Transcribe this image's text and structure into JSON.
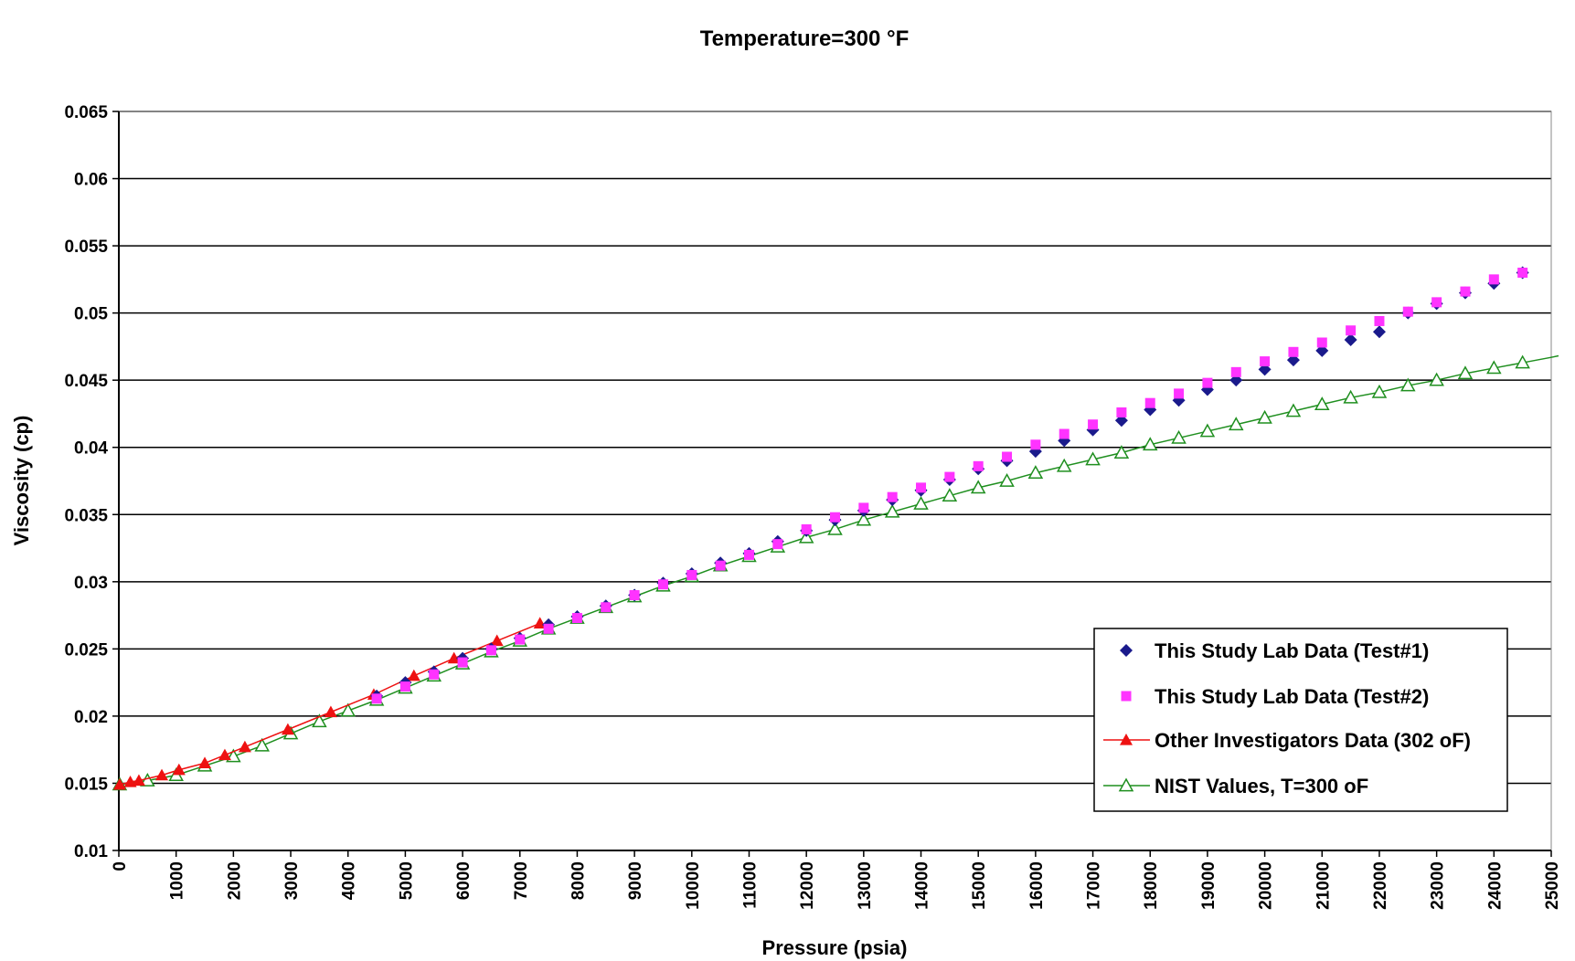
{
  "chart_data": {
    "type": "scatter",
    "title": "Temperature=300 °F",
    "xlabel": "Pressure (psia)",
    "ylabel": "Viscosity (cp)",
    "xlim": [
      0,
      25000
    ],
    "ylim": [
      0.01,
      0.065
    ],
    "xticks": [
      "0",
      "1000",
      "2000",
      "3000",
      "4000",
      "5000",
      "6000",
      "7000",
      "8000",
      "9000",
      "10000",
      "11000",
      "12000",
      "13000",
      "14000",
      "15000",
      "16000",
      "17000",
      "18000",
      "19000",
      "20000",
      "21000",
      "22000",
      "23000",
      "24000",
      "25000"
    ],
    "yticks": [
      "0.01",
      "0.015",
      "0.02",
      "0.025",
      "0.03",
      "0.035",
      "0.04",
      "0.045",
      "0.05",
      "0.055",
      "0.06",
      "0.065"
    ],
    "grid": "horizontal",
    "legend_position": "bottom-right",
    "series": [
      {
        "name": "This Study Lab Data (Test#1)",
        "marker": "diamond",
        "color": "#1a1a8c",
        "line": false,
        "x": [
          4500,
          5000,
          5500,
          6000,
          6500,
          7000,
          7500,
          8000,
          8500,
          9000,
          9500,
          10000,
          10500,
          11000,
          11500,
          12000,
          12500,
          13000,
          13500,
          14000,
          14500,
          15000,
          15500,
          16000,
          16500,
          17000,
          17500,
          18000,
          18500,
          19000,
          19500,
          20000,
          20500,
          21000,
          21500,
          22000,
          22500,
          23000,
          23500,
          24000,
          24500
        ],
        "y": [
          0.0215,
          0.0225,
          0.0233,
          0.0243,
          0.025,
          0.0258,
          0.0268,
          0.0274,
          0.0282,
          0.029,
          0.0299,
          0.0306,
          0.0314,
          0.0321,
          0.033,
          0.0338,
          0.0346,
          0.0353,
          0.0361,
          0.0368,
          0.0376,
          0.0384,
          0.039,
          0.0397,
          0.0405,
          0.0413,
          0.042,
          0.0428,
          0.0435,
          0.0443,
          0.045,
          0.0458,
          0.0465,
          0.0472,
          0.048,
          0.0486,
          0.05,
          0.0507,
          0.0515,
          0.0522,
          0.053
        ]
      },
      {
        "name": "This Study Lab Data (Test#2)",
        "marker": "square",
        "color": "#ff33ff",
        "line": false,
        "x": [
          4500,
          5000,
          5500,
          6000,
          6500,
          7000,
          7500,
          8000,
          8500,
          9000,
          9500,
          10000,
          10500,
          11000,
          11500,
          12000,
          12500,
          13000,
          13500,
          14000,
          14500,
          15000,
          15500,
          16000,
          16500,
          17000,
          17500,
          18000,
          18500,
          19000,
          19500,
          20000,
          20500,
          21000,
          21500,
          22000,
          22500,
          23000,
          23500,
          24000,
          24500
        ],
        "y": [
          0.0213,
          0.0222,
          0.0231,
          0.024,
          0.0249,
          0.0257,
          0.0265,
          0.0273,
          0.0281,
          0.029,
          0.0298,
          0.0305,
          0.0312,
          0.032,
          0.0328,
          0.0339,
          0.0348,
          0.0355,
          0.0363,
          0.037,
          0.0378,
          0.0386,
          0.0393,
          0.0402,
          0.041,
          0.0417,
          0.0426,
          0.0433,
          0.044,
          0.0448,
          0.0456,
          0.0464,
          0.0471,
          0.0478,
          0.0487,
          0.0494,
          0.0501,
          0.0508,
          0.0516,
          0.0525,
          0.053
        ]
      },
      {
        "name": "Other Investigators Data (302 oF)",
        "marker": "triangle-filled",
        "color": "#ee1111",
        "line": true,
        "x": [
          14.7,
          200,
          350,
          750,
          1050,
          1500,
          1850,
          2200,
          2950,
          3700,
          4450,
          5150,
          5850,
          6600,
          7350
        ],
        "y": [
          0.0149,
          0.0151,
          0.0152,
          0.0156,
          0.016,
          0.0165,
          0.0171,
          0.0177,
          0.019,
          0.0203,
          0.0216,
          0.023,
          0.0243,
          0.0256,
          0.0269
        ]
      },
      {
        "name": "NIST Values, T=300 oF",
        "marker": "triangle-open",
        "color": "#1f8f1f",
        "line": true,
        "x": [
          14.7,
          500,
          1000,
          1500,
          2000,
          2500,
          3000,
          3500,
          4000,
          4500,
          5000,
          5500,
          6000,
          6500,
          7000,
          7500,
          8000,
          8500,
          9000,
          9500,
          10000,
          10500,
          11000,
          11500,
          12000,
          12500,
          13000,
          13500,
          14000,
          14500,
          15000,
          15500,
          16000,
          16500,
          17000,
          17500,
          18000,
          18500,
          19000,
          19500,
          20000,
          20500,
          21000,
          21500,
          22000,
          22500,
          23000,
          23500,
          24000,
          24500,
          25000
        ],
        "y": [
          0.0149,
          0.0152,
          0.0156,
          0.0163,
          0.017,
          0.0178,
          0.0187,
          0.0196,
          0.0204,
          0.0212,
          0.0221,
          0.023,
          0.0239,
          0.0248,
          0.0256,
          0.0265,
          0.0273,
          0.0281,
          0.0289,
          0.0297,
          0.0304,
          0.0312,
          0.0319,
          0.0326,
          0.0333,
          0.0339,
          0.0346,
          0.0352,
          0.0358,
          0.0364,
          0.037,
          0.0375,
          0.0381,
          0.0386,
          0.0391,
          0.0396,
          0.0402,
          0.0407,
          0.0412,
          0.0417,
          0.0422,
          0.0427,
          0.0432,
          0.0437,
          0.0441,
          0.0446,
          0.045,
          0.0455,
          0.0459,
          0.0463,
          0.0467
        ]
      }
    ]
  }
}
